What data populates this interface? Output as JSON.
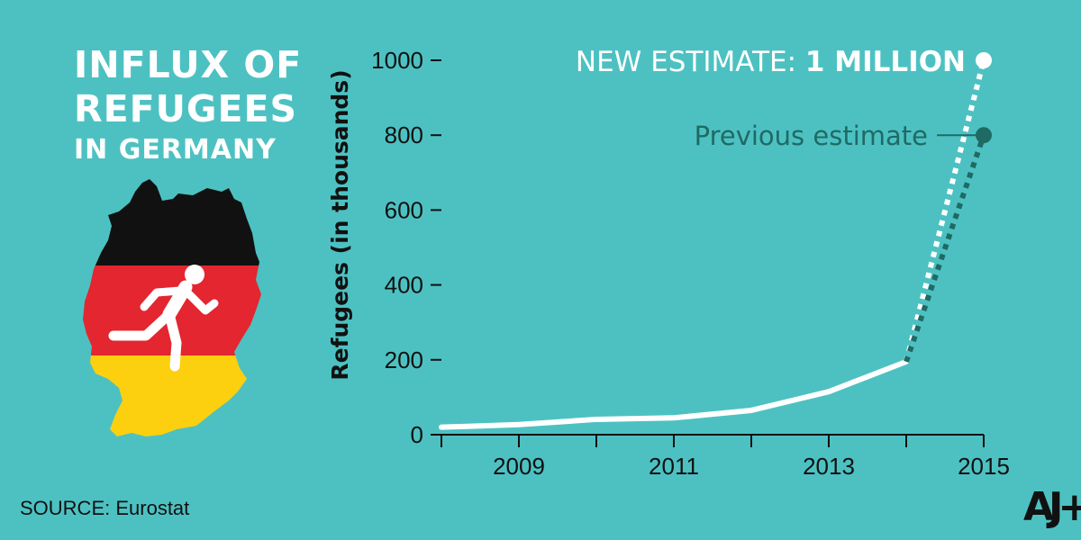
{
  "title": {
    "line1": "INFLUX OF",
    "line2": "REFUGEES",
    "line3": "IN GERMANY"
  },
  "source": "SOURCE: Eurostat",
  "logo": "AJ+",
  "colors": {
    "background": "#4dc1c2",
    "line": "#ffffff",
    "previous_estimate": "#1f6a64",
    "flag_black": "#111111",
    "flag_red": "#e3262f",
    "flag_gold": "#fcd00f"
  },
  "icons": [
    "germany-flag-map-icon",
    "running-person-icon",
    "ajplus-logo-icon"
  ],
  "chart_data": {
    "type": "line",
    "ylabel": "Refugees (in thousands)",
    "xlabel": "",
    "ylim": [
      0,
      1000
    ],
    "xlim": [
      2008,
      2015
    ],
    "y_ticks": [
      0,
      200,
      400,
      600,
      800,
      1000
    ],
    "y_tick_labels": [
      "0",
      "200",
      "400",
      "600",
      "800",
      "1000"
    ],
    "x_ticks": [
      2008,
      2009,
      2010,
      2011,
      2012,
      2013,
      2014,
      2015
    ],
    "x_tick_labels": [
      "",
      "2009",
      "",
      "2011",
      "",
      "2013",
      "",
      "2015"
    ],
    "series": [
      {
        "style": "solid",
        "color": "#ffffff",
        "x": [
          2008,
          2009,
          2010,
          2011,
          2012,
          2013,
          2014
        ],
        "y": [
          20,
          27,
          41,
          45,
          65,
          115,
          195
        ]
      },
      {
        "style": "dotted",
        "color": "#ffffff",
        "x": [
          2014,
          2015
        ],
        "y": [
          195,
          1000
        ]
      },
      {
        "style": "dotted",
        "color": "#1f6a64",
        "x": [
          2014,
          2015
        ],
        "y": [
          195,
          800
        ]
      }
    ],
    "annotations": [
      {
        "text_plain": "NEW ESTIMATE: ",
        "text_bold": "1 MILLION",
        "x": 2015,
        "y": 1000,
        "color": "#ffffff"
      },
      {
        "text": "Previous estimate",
        "x": 2015,
        "y": 800,
        "color": "#1f6a64"
      }
    ],
    "grid": false
  }
}
